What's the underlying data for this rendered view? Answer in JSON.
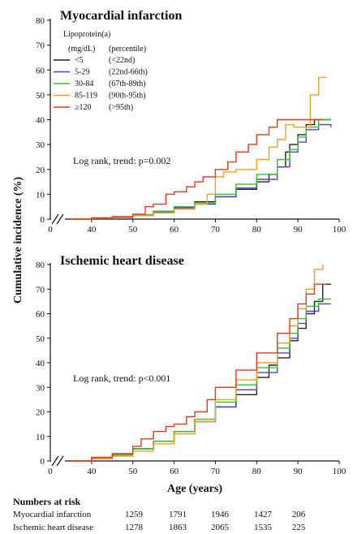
{
  "chart_data": [
    {
      "type": "line",
      "title": "Myocardial infarction",
      "legend_title": "Lipoprotein(a)",
      "legend_header": [
        "(mg/dL)",
        "(percentile)"
      ],
      "annotation": "Log rank, trend: p=0.002",
      "xlabel": "Age (years)",
      "ylabel": "Cumulative incidence (%)",
      "xlim": [
        30,
        100
      ],
      "ylim": [
        0,
        80
      ],
      "xticks": [
        40,
        50,
        60,
        70,
        80,
        90,
        100
      ],
      "yticks": [
        0,
        10,
        20,
        30,
        40,
        50,
        60,
        70,
        80
      ],
      "legend_placement": "top-left",
      "axis_break": true,
      "series": [
        {
          "name": "<5",
          "percentile": "(<22nd)",
          "color": "#222222",
          "x": [
            35,
            40,
            45,
            50,
            55,
            60,
            65,
            70,
            75,
            80,
            83,
            85,
            87,
            88,
            90,
            92,
            94,
            98
          ],
          "y": [
            0,
            0.3,
            0.8,
            1.5,
            3,
            5,
            7,
            9,
            12,
            15,
            18,
            21,
            27,
            30,
            34,
            38,
            40,
            40
          ]
        },
        {
          "name": "5-29",
          "percentile": "(22nd-66th)",
          "color": "#5540c8",
          "x": [
            35,
            40,
            45,
            50,
            55,
            60,
            65,
            70,
            75,
            80,
            85,
            88,
            90,
            92,
            95,
            98
          ],
          "y": [
            0,
            0.3,
            0.7,
            1.5,
            3,
            4.5,
            6,
            9,
            12.5,
            16,
            21,
            27,
            31,
            36,
            38,
            37
          ]
        },
        {
          "name": "30-84",
          "percentile": "(67th-89th)",
          "color": "#2ec52e",
          "x": [
            35,
            40,
            45,
            50,
            55,
            60,
            65,
            70,
            75,
            80,
            85,
            88,
            90,
            92,
            95,
            98
          ],
          "y": [
            0,
            0.3,
            0.8,
            1.8,
            3.2,
            5,
            6.5,
            10,
            14,
            18,
            24,
            28,
            33,
            37,
            40,
            40
          ]
        },
        {
          "name": "85-119",
          "percentile": "(90th-95th)",
          "color": "#f0a020",
          "x": [
            35,
            40,
            45,
            50,
            55,
            60,
            65,
            68,
            70,
            72,
            75,
            80,
            83,
            85,
            87,
            89,
            91,
            93,
            95,
            97
          ],
          "y": [
            0,
            0.5,
            1,
            1.5,
            2.5,
            4,
            6,
            10,
            17,
            19,
            20,
            24,
            29,
            32,
            38,
            37,
            37,
            50,
            57,
            57
          ]
        },
        {
          "name": "≥120",
          "percentile": "(>95th)",
          "color": "#e83820",
          "x": [
            35,
            40,
            45,
            50,
            53,
            55,
            58,
            60,
            63,
            65,
            67,
            70,
            73,
            75,
            78,
            80,
            83,
            85,
            87,
            90,
            93,
            96
          ],
          "y": [
            0,
            0.5,
            1,
            2,
            5,
            6,
            10,
            11,
            13,
            15,
            17,
            20,
            23,
            27,
            30,
            34,
            37,
            40,
            40,
            40,
            40,
            40
          ]
        }
      ]
    },
    {
      "type": "line",
      "title": "Ischemic heart disease",
      "annotation": "Log rank, trend: p<0.001",
      "xlabel": "Age (years)",
      "ylabel": "Cumulative incidence (%)",
      "xlim": [
        30,
        100
      ],
      "ylim": [
        0,
        80
      ],
      "xticks": [
        40,
        50,
        60,
        70,
        80,
        90,
        100
      ],
      "yticks": [
        0,
        10,
        20,
        30,
        40,
        50,
        60,
        70,
        80
      ],
      "axis_break": true,
      "series": [
        {
          "name": "<5",
          "percentile": "(<22nd)",
          "color": "#222222",
          "x": [
            35,
            40,
            45,
            50,
            55,
            60,
            65,
            70,
            75,
            80,
            83,
            85,
            88,
            90,
            92,
            94,
            96,
            98
          ],
          "y": [
            0,
            1,
            2.5,
            5,
            8,
            12,
            16,
            22,
            27,
            34,
            39,
            42,
            49,
            54,
            60,
            65,
            72,
            72
          ]
        },
        {
          "name": "5-29",
          "percentile": "(22nd-66th)",
          "color": "#5540c8",
          "x": [
            35,
            40,
            45,
            50,
            55,
            60,
            65,
            70,
            75,
            80,
            85,
            88,
            90,
            92,
            95,
            98
          ],
          "y": [
            0,
            1,
            2.5,
            5,
            8,
            12,
            16,
            22,
            29,
            36,
            44,
            50,
            56,
            61,
            64,
            64
          ]
        },
        {
          "name": "30-84",
          "percentile": "(67th-89th)",
          "color": "#2ec52e",
          "x": [
            35,
            40,
            45,
            50,
            55,
            60,
            65,
            70,
            75,
            80,
            85,
            88,
            90,
            92,
            95,
            98
          ],
          "y": [
            0,
            1,
            2.5,
            5,
            8,
            12,
            17,
            24,
            31,
            38,
            46,
            52,
            58,
            63,
            66,
            66
          ]
        },
        {
          "name": "85-119",
          "percentile": "(90th-95th)",
          "color": "#f0a020",
          "x": [
            35,
            40,
            45,
            50,
            55,
            60,
            65,
            70,
            75,
            80,
            85,
            88,
            90,
            92,
            94,
            96
          ],
          "y": [
            0,
            1,
            2,
            4,
            7,
            11,
            16,
            25,
            33,
            40,
            48,
            55,
            62,
            70,
            78,
            80
          ]
        },
        {
          "name": "≥120",
          "percentile": "(>95th)",
          "color": "#e83820",
          "x": [
            35,
            40,
            45,
            50,
            52,
            55,
            58,
            60,
            63,
            65,
            68,
            70,
            75,
            80,
            85,
            88,
            90,
            92,
            94,
            97
          ],
          "y": [
            0,
            1.5,
            3,
            6,
            9,
            12,
            14,
            15,
            18,
            20,
            25,
            30,
            37,
            44,
            52,
            58,
            64,
            68,
            72,
            72
          ]
        }
      ]
    }
  ],
  "numbers_at_risk": {
    "heading": "Numbers at risk",
    "rows": [
      {
        "label": "Myocardial infarction",
        "values": [
          "1259",
          "1791",
          "1946",
          "1427",
          "206"
        ]
      },
      {
        "label": "Ischemic heart disease",
        "values": [
          "1278",
          "1863",
          "2065",
          "1535",
          "225"
        ]
      }
    ]
  }
}
